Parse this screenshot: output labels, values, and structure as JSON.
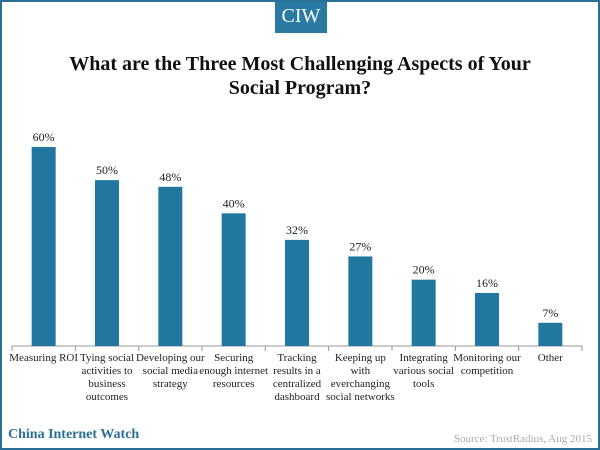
{
  "logo": "CIW",
  "brand": "China Internet Watch",
  "source": "Source: TrustRadius, Aug 2015",
  "chart_data": {
    "type": "bar",
    "title": "What are the Three Most Challenging Aspects of Your Social Program?",
    "title_lines": [
      "What are the Three Most Challenging Aspects of Your",
      "Social Program?"
    ],
    "categories": [
      [
        "Measuring ROI"
      ],
      [
        "Tying social",
        "activities to",
        "business",
        "outcomes"
      ],
      [
        "Developing our",
        "social media",
        "strategy"
      ],
      [
        "Securing",
        "enough internet",
        "resources"
      ],
      [
        "Tracking",
        "results in a",
        "centralized",
        "dashboard"
      ],
      [
        "Keeping up",
        "with",
        "everchanging",
        "social networks"
      ],
      [
        "Integrating",
        "various social",
        "tools"
      ],
      [
        "Monitoring our",
        "competition"
      ],
      [
        "Other"
      ]
    ],
    "values": [
      60,
      50,
      48,
      40,
      32,
      27,
      20,
      16,
      7
    ],
    "value_labels": [
      "60%",
      "50%",
      "48%",
      "40%",
      "32%",
      "27%",
      "20%",
      "16%",
      "7%"
    ],
    "bar_color": "#2277a0",
    "xlabel": "",
    "ylabel": "",
    "ylim": [
      0,
      60
    ],
    "grid": false,
    "legend": "none"
  }
}
